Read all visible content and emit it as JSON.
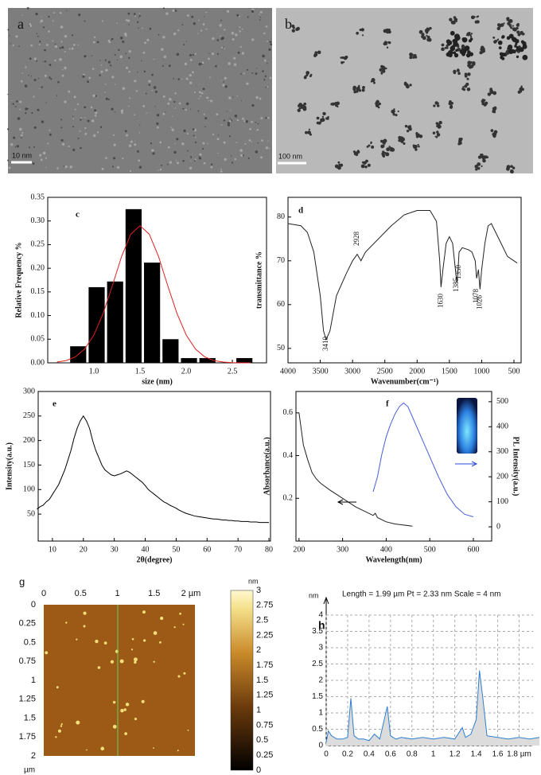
{
  "images": {
    "a": {
      "label": "a",
      "scale": "10 nm"
    },
    "b": {
      "label": "b",
      "scale": "100 nm"
    },
    "g": {
      "label": "g",
      "xticks": [
        "0",
        "0.5",
        "1",
        "1.5",
        "2 µm"
      ],
      "yticks": [
        "0",
        "0.25",
        "0.5",
        "0.75",
        "1",
        "1.25",
        "1.5",
        "1.75",
        "2"
      ],
      "unit": "µm",
      "colorbar_unit": "nm",
      "colorbar_ticks": [
        "0",
        "0.25",
        "0.5",
        "0.75",
        "1",
        "1.25",
        "1.5",
        "1.75",
        "2",
        "2.25",
        "2.5",
        "2.75",
        "3"
      ]
    }
  },
  "chart_data": [
    {
      "type": "histogram",
      "label": "c",
      "xlabel": "size (nm)",
      "ylabel": "Relative Frequency %",
      "color": "#000000",
      "bins": [
        0.73,
        0.93,
        1.13,
        1.33,
        1.53,
        1.73,
        1.93,
        2.13,
        2.33,
        2.53,
        2.73
      ],
      "values": [
        0.035,
        0.16,
        0.172,
        0.325,
        0.212,
        0.05,
        0.01,
        0.01,
        0,
        0.01
      ],
      "fit": {
        "color": "#e02020",
        "x": [
          0.6,
          0.7,
          0.8,
          0.9,
          1.0,
          1.1,
          1.2,
          1.3,
          1.4,
          1.5,
          1.6,
          1.7,
          1.8,
          1.9,
          2.0,
          2.1,
          2.2,
          2.3,
          2.4,
          2.5,
          2.6,
          2.7
        ],
        "values": [
          0.0017,
          0.0049,
          0.0127,
          0.0292,
          0.0589,
          0.1045,
          0.163,
          0.225,
          0.272,
          0.29,
          0.272,
          0.225,
          0.163,
          0.1045,
          0.0589,
          0.0292,
          0.0127,
          0.0049,
          0.0017,
          0.0004,
          0.0001,
          0
        ]
      },
      "xlim": [
        0.5,
        2.87
      ],
      "xticks": [
        {
          "value": 1.0,
          "label": "1.0"
        },
        {
          "value": 1.5,
          "label": "1.5"
        },
        {
          "value": 2.0,
          "label": "2.0"
        },
        {
          "value": 2.5,
          "label": "2.5"
        }
      ],
      "ylim": [
        0,
        0.35
      ],
      "yticks": [
        {
          "value": 0,
          "label": "0.00"
        },
        {
          "value": 0.05,
          "label": "0.05"
        },
        {
          "value": 0.1,
          "label": "0.10"
        },
        {
          "value": 0.15,
          "label": "0.15"
        },
        {
          "value": 0.2,
          "label": "0.20"
        },
        {
          "value": 0.25,
          "label": "0.25"
        },
        {
          "value": 0.3,
          "label": "0.30"
        },
        {
          "value": 0.35,
          "label": "0.35"
        }
      ]
    },
    {
      "type": "line",
      "label": "d",
      "xlabel": "Wavenumber(cm⁻¹)",
      "ylabel": "transmittance %",
      "series": [
        {
          "color": "#222222",
          "x": [
            4000,
            3800,
            3700,
            3600,
            3500,
            3450,
            3410,
            3350,
            3250,
            3100,
            3000,
            2928,
            2870,
            2800,
            2600,
            2400,
            2200,
            2000,
            1800,
            1700,
            1650,
            1630,
            1600,
            1550,
            1500,
            1450,
            1385,
            1370,
            1350,
            1300,
            1200,
            1150,
            1100,
            1078,
            1050,
            1026,
            1000,
            950,
            900,
            850,
            800,
            700,
            600,
            500,
            450
          ],
          "values": [
            78.5,
            78,
            76.5,
            72,
            62,
            54,
            52,
            54,
            62,
            67,
            70,
            71.5,
            70,
            72,
            75,
            78,
            80.5,
            81.5,
            81.5,
            79,
            70,
            64,
            68,
            74,
            75.5,
            74,
            65,
            67,
            72,
            73,
            72.5,
            72,
            70,
            66,
            68,
            63.5,
            68,
            74,
            78,
            78.5,
            77,
            74,
            71,
            70,
            69.5
          ]
        }
      ],
      "annotations": [
        "3410",
        "2928",
        "1630",
        "1385",
        "1350",
        "1078",
        "1026"
      ],
      "xlim": [
        4000,
        389
      ],
      "xticks": [
        4000,
        3500,
        3000,
        2500,
        2000,
        1500,
        1000,
        500
      ],
      "ylim": [
        46.7,
        84.5
      ],
      "yticks": [
        50,
        60,
        70,
        80
      ]
    },
    {
      "type": "line",
      "label": "e",
      "xlabel": "2θ(degree)",
      "ylabel": "Intensity(a.u.)",
      "series": [
        {
          "color": "#000000",
          "x": [
            5,
            6,
            7,
            8,
            9,
            10,
            11,
            12,
            13,
            14,
            15,
            16,
            17,
            18,
            19,
            20,
            21,
            22,
            23,
            24,
            25,
            26,
            27,
            28,
            29,
            30,
            31,
            32,
            33,
            34,
            35,
            36,
            37,
            38,
            39,
            40,
            41,
            42,
            43,
            44,
            45,
            46,
            47,
            48,
            49,
            50,
            51,
            52,
            53,
            54,
            55,
            56,
            57,
            58,
            59,
            60,
            61,
            62,
            63,
            64,
            65,
            66,
            67,
            68,
            69,
            70,
            71,
            72,
            73,
            74,
            75,
            76,
            77,
            78,
            79,
            80
          ],
          "values": [
            60,
            65,
            68,
            75,
            80,
            90,
            100,
            110,
            125,
            140,
            160,
            180,
            205,
            225,
            240,
            250,
            240,
            225,
            200,
            180,
            165,
            150,
            140,
            135,
            130,
            128,
            130,
            132,
            135,
            138,
            135,
            130,
            125,
            120,
            115,
            108,
            100,
            95,
            90,
            85,
            80,
            75,
            72,
            68,
            65,
            62,
            58,
            55,
            52,
            50,
            48,
            46,
            45,
            44,
            43,
            42,
            41,
            40,
            40,
            39,
            38,
            38,
            37,
            37,
            36,
            36,
            35,
            35,
            35,
            34,
            34,
            34,
            33,
            33,
            33,
            33
          ]
        }
      ],
      "xlim": [
        5.4,
        80.5
      ],
      "xticks": [
        10,
        20,
        30,
        40,
        50,
        60,
        70,
        80
      ],
      "ylim": [
        -5,
        300
      ],
      "yticks": [
        50,
        100,
        150,
        200,
        250,
        300
      ]
    },
    {
      "type": "line",
      "label": "f",
      "xlabel": "Wavelength(nm)",
      "ylabel": "Absorbance(a.u.)",
      "y2label": "PL Intensity(a.u.)",
      "series": [
        {
          "color": "#222222",
          "x": [
            200,
            210,
            220,
            230,
            240,
            250,
            270,
            300,
            330,
            360,
            370,
            375,
            380,
            400,
            420,
            440,
            460
          ],
          "values": [
            0.6,
            0.45,
            0.38,
            0.32,
            0.29,
            0.27,
            0.24,
            0.2,
            0.16,
            0.13,
            0.12,
            0.13,
            0.11,
            0.09,
            0.08,
            0.075,
            0.07
          ]
        },
        {
          "color": "#4a5ed8",
          "axis": "y2",
          "x": [
            370,
            380,
            390,
            400,
            410,
            420,
            430,
            440,
            450,
            460,
            480,
            500,
            520,
            540,
            560,
            580,
            600
          ],
          "values": [
            140,
            200,
            290,
            360,
            410,
            450,
            480,
            495,
            480,
            440,
            360,
            280,
            200,
            130,
            80,
            50,
            40
          ]
        }
      ],
      "xlim": [
        193,
        642
      ],
      "xticks": [
        200,
        300,
        400,
        500,
        600
      ],
      "ylim": [
        0,
        0.7
      ],
      "yticks": [
        0.2,
        0.4,
        0.6
      ],
      "y2lim": [
        -57,
        541
      ],
      "y2ticks": [
        0,
        100,
        200,
        300,
        400,
        500
      ]
    },
    {
      "type": "line",
      "label": "h",
      "title": "Length = 1.99 µm  Pt = 2.33 nm  Scale = 4 nm",
      "yunit": "nm",
      "grid": true,
      "series": [
        {
          "color": "#2f7fd0",
          "area_color": "#dcdcdc",
          "x": [
            0,
            0.02,
            0.05,
            0.1,
            0.15,
            0.2,
            0.23,
            0.26,
            0.3,
            0.35,
            0.4,
            0.45,
            0.5,
            0.57,
            0.6,
            0.65,
            0.7,
            0.8,
            0.9,
            1.0,
            1.1,
            1.2,
            1.27,
            1.3,
            1.35,
            1.4,
            1.43,
            1.46,
            1.5,
            1.6,
            1.7,
            1.8,
            1.9,
            1.99
          ],
          "values": [
            0.1,
            0.45,
            0.3,
            0.2,
            0.2,
            0.25,
            1.45,
            0.3,
            0.2,
            0.2,
            0.15,
            0.35,
            0.2,
            1.2,
            0.3,
            0.2,
            0.25,
            0.2,
            0.25,
            0.2,
            0.25,
            0.2,
            0.55,
            0.25,
            0.35,
            0.8,
            2.3,
            1.5,
            0.3,
            0.25,
            0.2,
            0.25,
            0.2,
            0.25
          ]
        }
      ],
      "xlim": [
        0,
        1.93
      ],
      "xticks": [
        0,
        0.2,
        0.4,
        0.6,
        0.8,
        1,
        1.2,
        1.4,
        1.6,
        {
          "value": 1.8,
          "label": "1.8 µm"
        }
      ],
      "ylim": [
        0,
        4
      ],
      "yticks": [
        0,
        0.5,
        1,
        1.5,
        2,
        2.5,
        3,
        3.5,
        4
      ]
    }
  ]
}
